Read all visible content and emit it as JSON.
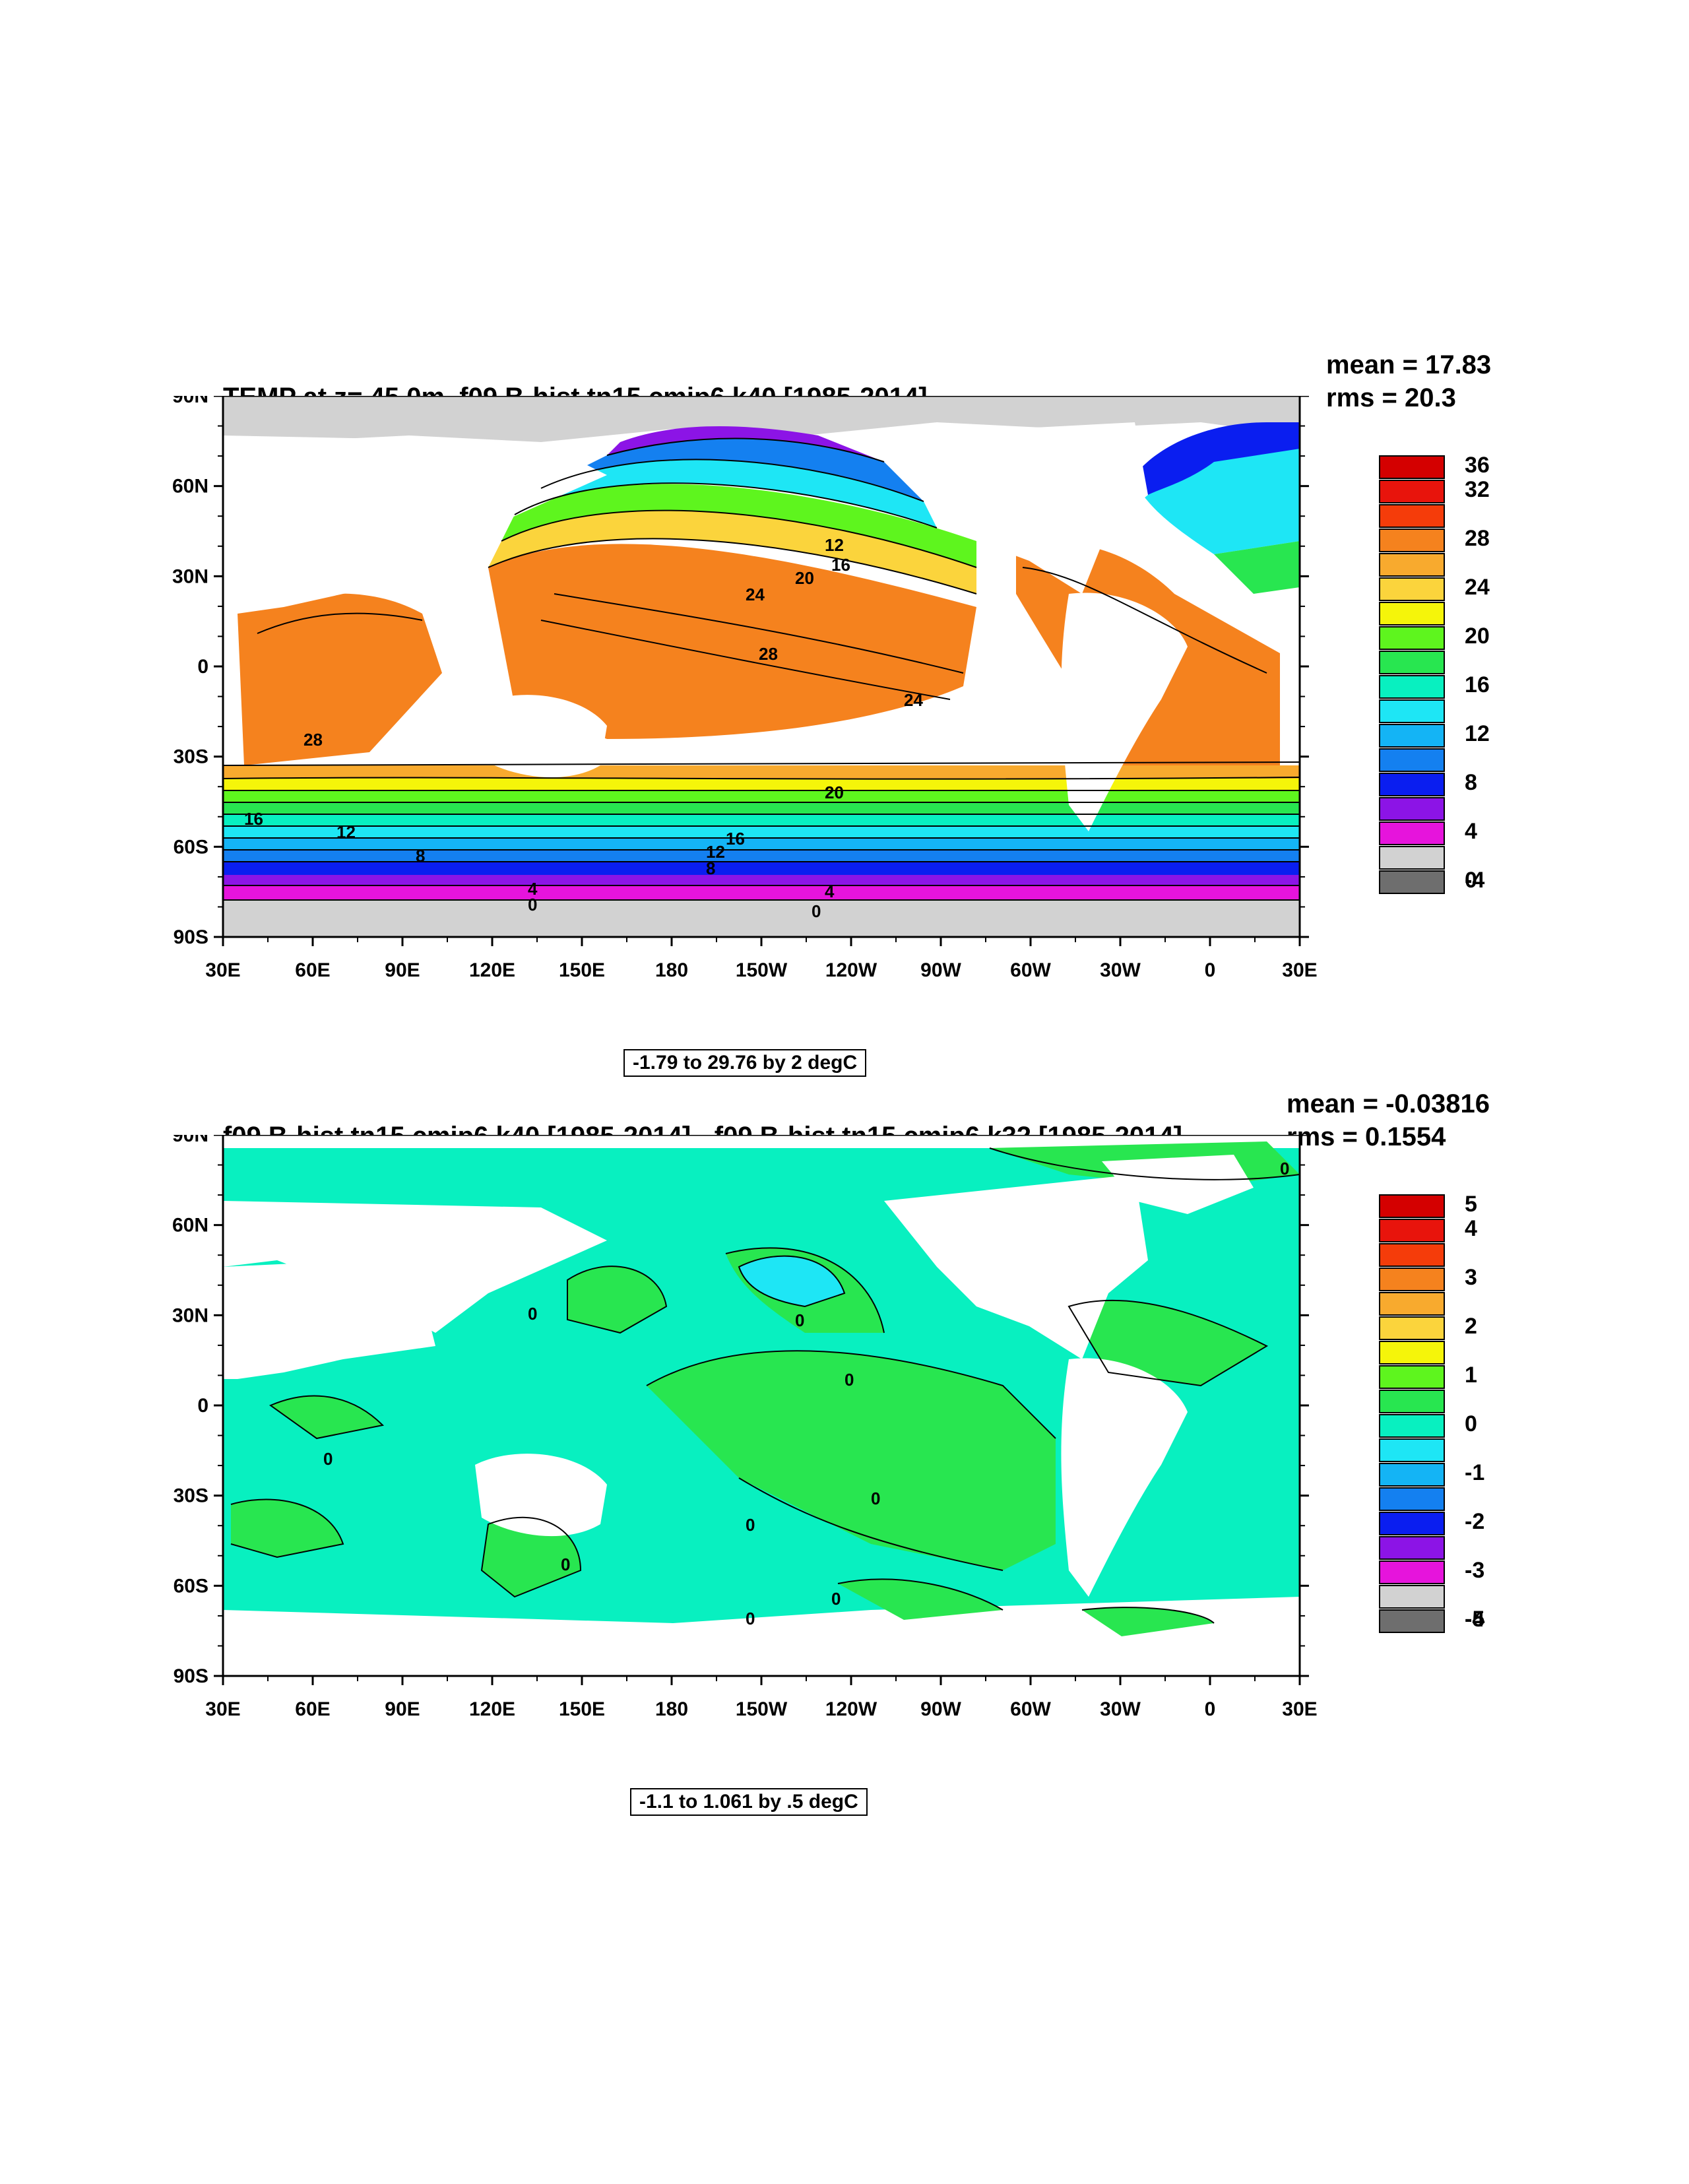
{
  "panels": [
    {
      "id": "top",
      "title": "TEMP at z=  45.0m, f09.B-hist.tn15.cmip6.k40 [1985-2014]",
      "mean_text": "mean = 17.83",
      "rms_text": "rms = 20.3",
      "range_text": "-1.79 to 29.76 by 2 degC",
      "legend_labels": [
        "36",
        "32",
        "28",
        "24",
        "20",
        "16",
        "12",
        "8",
        "4",
        "0",
        "-4"
      ],
      "legend_colors": [
        "#d40000",
        "#e8140c",
        "#f53c0a",
        "#f5821e",
        "#f8aa2e",
        "#fbd43c",
        "#f5f50a",
        "#5ef51e",
        "#28e650",
        "#08f0c0",
        "#1ee6f5",
        "#14b4f5",
        "#1480f0",
        "#0a1ef0",
        "#8c14e6",
        "#e614dc",
        "#d2d2d2",
        "#6e6e6e"
      ],
      "contour_labels": [
        "28",
        "24",
        "20",
        "16",
        "12",
        "8",
        "4",
        "0",
        "28",
        "24",
        "20",
        "16",
        "12",
        "8",
        "4",
        "0",
        "16",
        "12"
      ]
    },
    {
      "id": "bottom",
      "title": "f09.B-hist.tn15.cmip6.k40 [1985-2014] - f09.B-hist.tn15.cmip6.k32 [1985-2014]",
      "mean_text": "mean = -0.03816",
      "rms_text": "rms = 0.1554",
      "range_text": "-1.1 to 1.061 by .5 degC",
      "legend_labels": [
        "5",
        "4",
        "3",
        "2",
        "1",
        "0",
        "-1",
        "-2",
        "-3",
        "-4",
        "-5"
      ],
      "legend_colors": [
        "#d40000",
        "#e8140c",
        "#f53c0a",
        "#f5821e",
        "#f8aa2e",
        "#fbd43c",
        "#f5f50a",
        "#5ef51e",
        "#28e650",
        "#08f0c0",
        "#1ee6f5",
        "#14b4f5",
        "#1480f0",
        "#0a1ef0",
        "#8c14e6",
        "#e614dc",
        "#d2d2d2",
        "#6e6e6e"
      ],
      "contour_labels": [
        "0",
        "0",
        "0",
        "0",
        "0",
        "0",
        "0",
        "0",
        "0",
        "0"
      ]
    }
  ],
  "axes": {
    "lat_labels": [
      "90N",
      "60N",
      "30N",
      "0",
      "30S",
      "60S",
      "90S"
    ],
    "lon_labels": [
      "30E",
      "60E",
      "90E",
      "120E",
      "150E",
      "180",
      "150W",
      "120W",
      "90W",
      "60W",
      "30W",
      "0",
      "30E"
    ]
  },
  "colors": {
    "land_top": "#ffffff",
    "sea_ice": "#d2d2d2",
    "diff_neg": "#08f0c0",
    "diff_pos": "#28e650",
    "diff_cyan": "#1ee6f5"
  }
}
